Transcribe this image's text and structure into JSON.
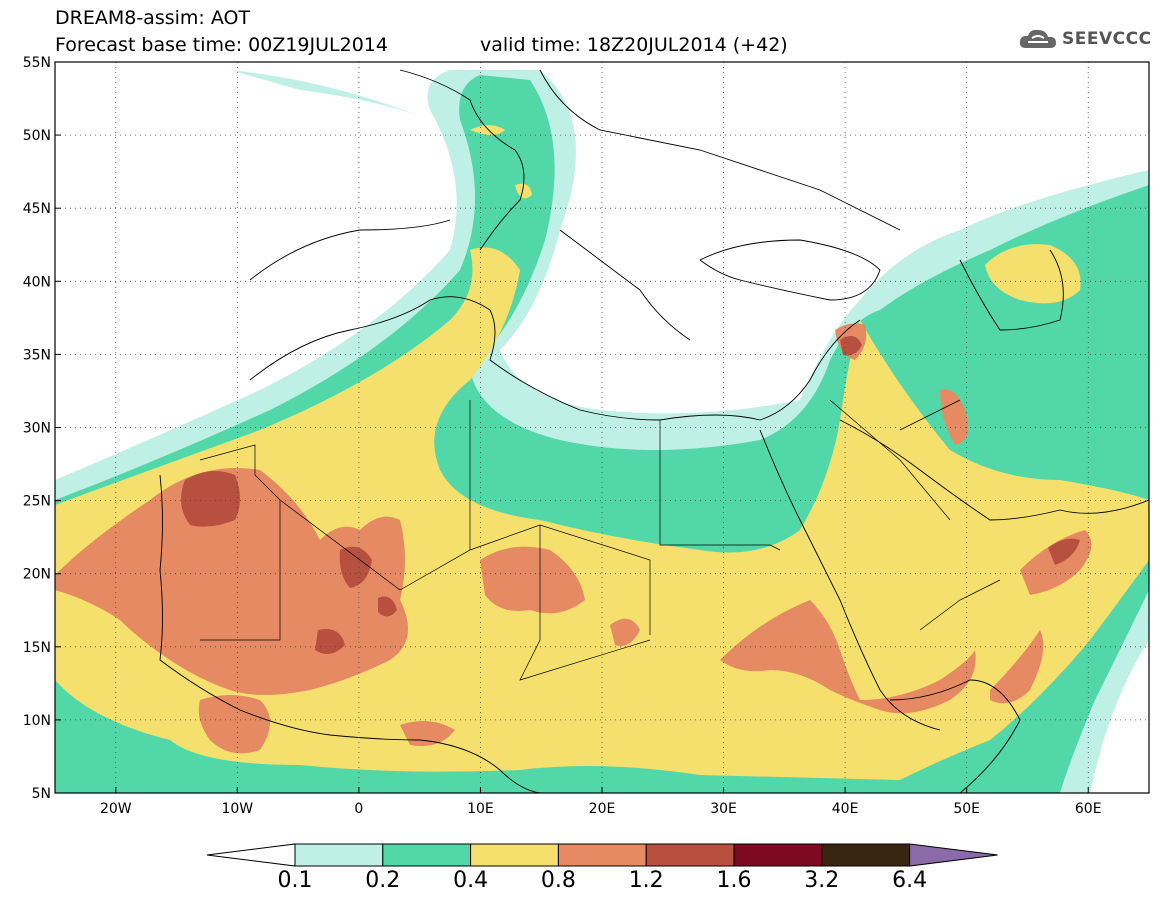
{
  "header": {
    "title": "DREAM8-assim: AOT",
    "base_time": "Forecast base time: 00Z19JUL2014",
    "valid_time": "valid time: 18Z20JUL2014 (+42)"
  },
  "logo": {
    "text": "SEEVCCC",
    "icon": "cloud-icon"
  },
  "map": {
    "lat_labels": [
      "55N",
      "50N",
      "45N",
      "40N",
      "35N",
      "30N",
      "25N",
      "20N",
      "15N",
      "10N",
      "5N"
    ],
    "lon_labels": [
      "20W",
      "10W",
      "0",
      "10E",
      "20E",
      "30E",
      "40E",
      "50E",
      "60E"
    ],
    "lat_range": [
      5,
      55
    ],
    "lon_range": [
      -25,
      65
    ],
    "grid": "dotted"
  },
  "colorbar": {
    "labels": [
      "0.1",
      "0.2",
      "0.4",
      "0.8",
      "1.2",
      "1.6",
      "3.2",
      "6.4"
    ],
    "colors": [
      "#ffffff",
      "#bff0e6",
      "#52d8a8",
      "#f5e06e",
      "#e58a62",
      "#b85040",
      "#7d0a20",
      "#3a2412",
      "#8a6aa8"
    ],
    "extend": "both"
  },
  "palette": {
    "c01": "#bff0e6",
    "c02": "#52d8a8",
    "c04": "#f5e06e",
    "c08": "#e58a62",
    "c12": "#b85040"
  }
}
